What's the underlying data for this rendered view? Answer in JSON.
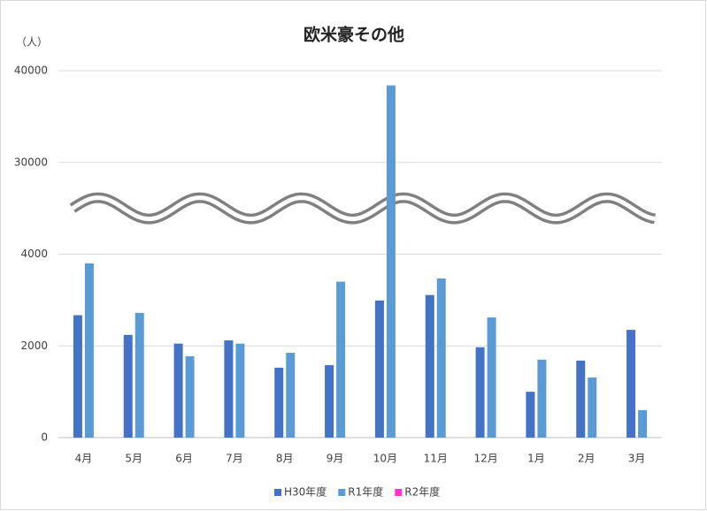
{
  "chart_data": {
    "type": "bar",
    "title": "欧米豪その他",
    "y_label": "（人）",
    "categories": [
      "4月",
      "5月",
      "6月",
      "7月",
      "8月",
      "9月",
      "10月",
      "11月",
      "12月",
      "1月",
      "2月",
      "3月"
    ],
    "series": [
      {
        "name": "H30年度",
        "color": "#4472c4",
        "values": [
          2670,
          2240,
          2050,
          2120,
          1525,
          1580,
          2990,
          3110,
          1970,
          1000,
          1680,
          2350
        ]
      },
      {
        "name": "R1年度",
        "color": "#5b9bd5",
        "values": [
          3800,
          2720,
          1775,
          2050,
          1850,
          3400,
          38400,
          3470,
          2620,
          1700,
          1310,
          600
        ]
      },
      {
        "name": "R2年度",
        "color": "#ff33cc",
        "values": [
          null,
          null,
          null,
          null,
          null,
          null,
          null,
          null,
          null,
          null,
          null,
          null
        ]
      }
    ],
    "ylim": [
      0,
      40000
    ],
    "yticks": [
      0,
      2000,
      4000,
      30000,
      40000
    ],
    "broken_axis": true,
    "grid": true,
    "legend": "bottom"
  }
}
